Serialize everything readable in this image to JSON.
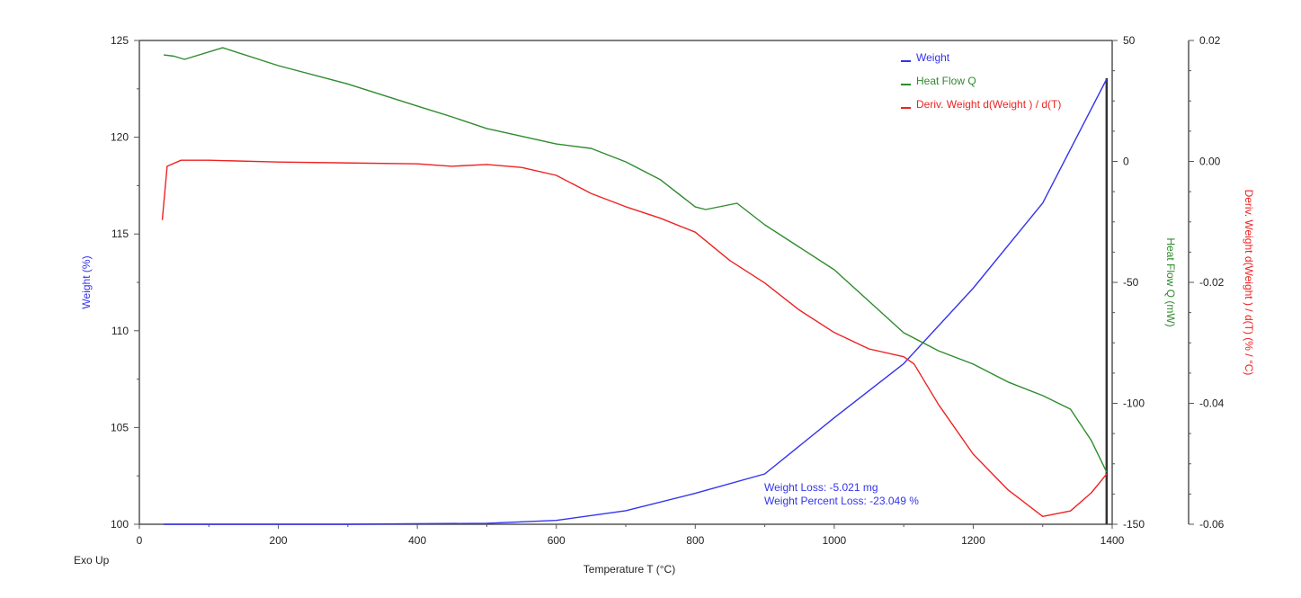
{
  "chart_data": {
    "type": "line",
    "xlabel": "Temperature T (°C)",
    "corner_label": "Exo Up",
    "x_axis": {
      "range": [
        0,
        1400
      ],
      "ticks": [
        0,
        200,
        400,
        600,
        800,
        1000,
        1200,
        1400
      ]
    },
    "y_axes": [
      {
        "id": "weight",
        "label": "Weight (%)",
        "side": "left",
        "color": "#3333ee",
        "range": [
          100,
          125
        ],
        "ticks": [
          100,
          105,
          110,
          115,
          120,
          125
        ],
        "tick_labels": [
          "100",
          "105",
          "110",
          "115",
          "120",
          "125"
        ]
      },
      {
        "id": "heat",
        "label": "Heat Flow Q (mW)",
        "side": "right",
        "color": "#2e8b2e",
        "range": [
          -150,
          50
        ],
        "ticks": [
          -150,
          -100,
          -50,
          0,
          50
        ],
        "tick_labels": [
          "-150",
          "-100",
          "-50",
          "0",
          "50"
        ]
      },
      {
        "id": "deriv",
        "label": "Deriv. Weight d(Weight ) / d(T) (% / °C)",
        "side": "far-right",
        "color": "#ee2222",
        "range": [
          -0.06,
          0.02
        ],
        "ticks": [
          -0.06,
          -0.04,
          -0.02,
          0.0,
          0.02
        ],
        "tick_labels": [
          "-0.06",
          "-0.04",
          "-0.02",
          "0.00",
          "0.02"
        ]
      }
    ],
    "legend": {
      "placement": "top-right"
    },
    "series": [
      {
        "name": "Weight",
        "axis": "weight",
        "color": "#3333ee",
        "x": [
          35,
          300,
          500,
          600,
          700,
          800,
          900,
          1000,
          1100,
          1200,
          1300,
          1392
        ],
        "y": [
          100.0,
          100.0,
          100.05,
          100.2,
          100.7,
          101.6,
          102.6,
          105.5,
          108.3,
          112.2,
          116.6,
          123.0
        ]
      },
      {
        "name": "Heat Flow Q",
        "axis": "heat",
        "color": "#2e8b2e",
        "x": [
          35,
          50,
          65,
          120,
          200,
          300,
          400,
          450,
          500,
          600,
          650,
          700,
          750,
          800,
          815,
          860,
          900,
          1000,
          1100,
          1150,
          1200,
          1250,
          1300,
          1340,
          1370,
          1392
        ],
        "y": [
          44,
          43.5,
          42.2,
          47,
          39.6,
          32,
          22.9,
          18.4,
          13.6,
          7.2,
          5.4,
          -0.2,
          -7.6,
          -18.8,
          -19.9,
          -17.3,
          -26.2,
          -44.8,
          -70.8,
          -78.3,
          -83.8,
          -91.2,
          -96.8,
          -102.4,
          -115.4,
          -128.4
        ]
      },
      {
        "name": "Deriv. Weight d(Weight ) / d(T)",
        "axis": "deriv",
        "color": "#ee2222",
        "x": [
          33,
          40,
          60,
          100,
          200,
          400,
          450,
          500,
          550,
          600,
          650,
          700,
          750,
          800,
          850,
          900,
          950,
          1000,
          1050,
          1100,
          1115,
          1150,
          1200,
          1250,
          1300,
          1340,
          1370,
          1392
        ],
        "y": [
          -0.0097,
          -0.0008,
          0.0002,
          0.0002,
          -0.0001,
          -0.0004,
          -0.0008,
          -0.0005,
          -0.001,
          -0.0023,
          -0.0053,
          -0.0075,
          -0.0094,
          -0.0117,
          -0.0164,
          -0.0201,
          -0.0246,
          -0.0283,
          -0.031,
          -0.0323,
          -0.0335,
          -0.0402,
          -0.0484,
          -0.0543,
          -0.0587,
          -0.0578,
          -0.0548,
          -0.0517
        ]
      }
    ],
    "annotations": [
      "Weight Loss: -5.021 mg",
      "Weight Percent Loss: -23.049 %"
    ],
    "marker_line_x": 1392
  }
}
